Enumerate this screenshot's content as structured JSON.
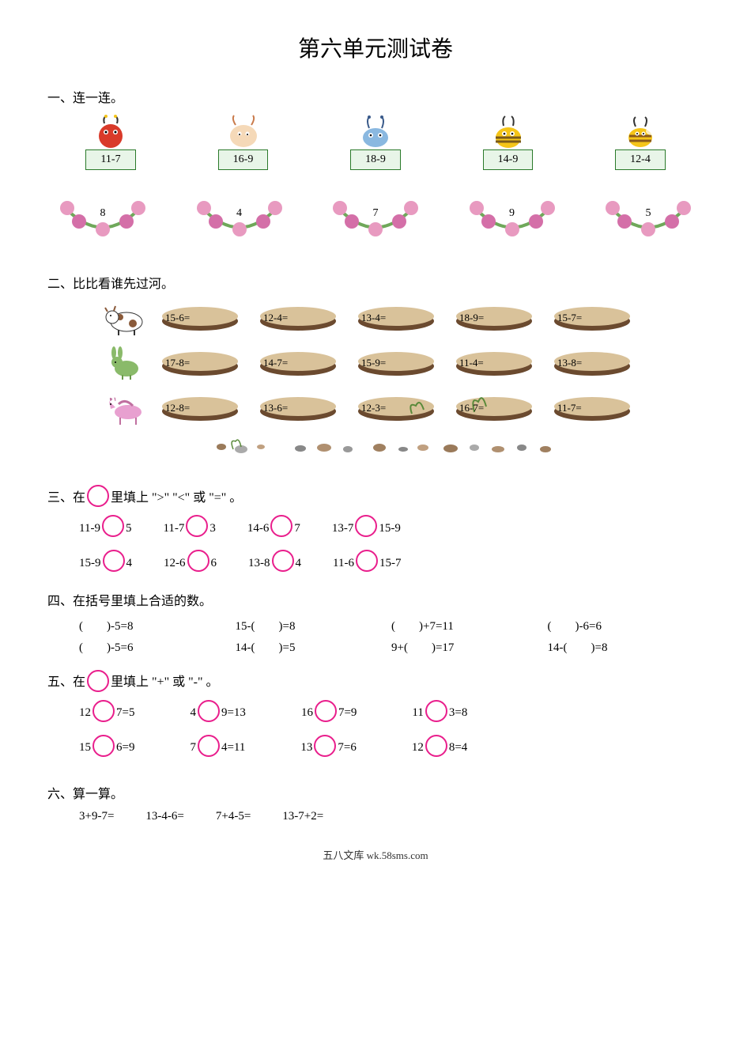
{
  "title": "第六单元测试卷",
  "footer": "五八文库 wk.58sms.com",
  "section1": {
    "label": "一、连一连。",
    "items": [
      {
        "expr": "11-7"
      },
      {
        "expr": "16-9"
      },
      {
        "expr": "18-9"
      },
      {
        "expr": "14-9"
      },
      {
        "expr": "12-4"
      }
    ],
    "wreaths": [
      "8",
      "4",
      "7",
      "9",
      "5"
    ],
    "colors": {
      "box_border": "#2a7a2a",
      "box_bg": "#e8f5e8",
      "flower": "#e89ac0",
      "flower_dark": "#d46fa8",
      "leaf": "#6fa85a"
    }
  },
  "section2": {
    "label": "二、比比看谁先过河。",
    "rows": [
      {
        "animal": "cow",
        "stones": [
          "15-6=",
          "12-4=",
          "13-4=",
          "18-9=",
          "15-7="
        ]
      },
      {
        "animal": "rabbit",
        "stones": [
          "17-8=",
          "14-7=",
          "15-9=",
          "11-4=",
          "13-8="
        ]
      },
      {
        "animal": "horse",
        "stones": [
          "12-8=",
          "13-6=",
          "12-3=",
          "16-7=",
          "11-7="
        ]
      }
    ],
    "colors": {
      "stone_top": "#d9c29a",
      "stone_bottom": "#6b4a2f",
      "weed": "#5a8a3a"
    }
  },
  "section3": {
    "label": "三、在",
    "label_mid": "里填上 \">\" \"<\" 或 \"=\" 。",
    "rows": [
      [
        {
          "l": "11-9",
          "r": "5"
        },
        {
          "l": "11-7",
          "r": "3"
        },
        {
          "l": "14-6",
          "r": "7"
        },
        {
          "l": "13-7",
          "r": "15-9"
        }
      ],
      [
        {
          "l": "15-9",
          "r": "4"
        },
        {
          "l": "12-6",
          "r": "6"
        },
        {
          "l": "13-8",
          "r": "4"
        },
        {
          "l": "11-6",
          "r": "15-7"
        }
      ]
    ],
    "circle_color": "#e91e8c"
  },
  "section4": {
    "label": "四、在括号里填上合适的数。",
    "rows": [
      [
        "(　　)-5=8",
        "15-(　　)=8",
        "(　　)+7=11",
        "(　　)-6=6"
      ],
      [
        "(　　)-5=6",
        "14-(　　)=5",
        "9+(　　)=17",
        "14-(　　)=8"
      ]
    ]
  },
  "section5": {
    "label": "五、在",
    "label_mid": "里填上 \"+\" 或 \"-\" 。",
    "rows": [
      [
        {
          "l": "12",
          "r": "7=5"
        },
        {
          "l": "4",
          "r": "9=13"
        },
        {
          "l": "16",
          "r": "7=9"
        },
        {
          "l": "11",
          "r": "3=8"
        }
      ],
      [
        {
          "l": "15",
          "r": "6=9"
        },
        {
          "l": "7",
          "r": "4=11"
        },
        {
          "l": "13",
          "r": "7=6"
        },
        {
          "l": "12",
          "r": "8=4"
        }
      ]
    ]
  },
  "section6": {
    "label": "六、算一算。",
    "items": [
      "3+9-7=",
      "13-4-6=",
      "7+4-5=",
      "13-7+2="
    ]
  }
}
